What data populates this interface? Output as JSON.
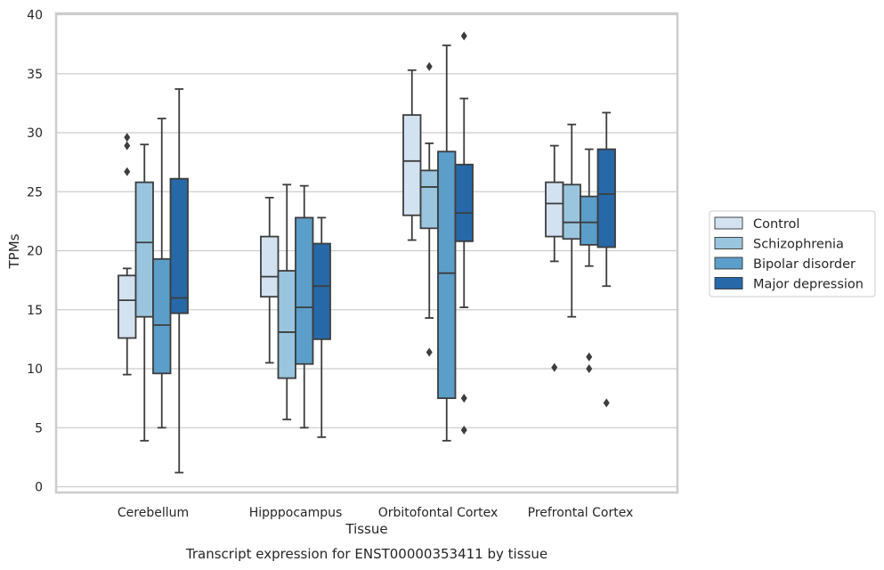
{
  "chart_data": {
    "type": "box",
    "title": "",
    "caption": "Transcript expression for ENST00000353411 by tissue",
    "xlabel": "Tissue",
    "ylabel": "TPMs",
    "ylim": [
      0,
      40
    ],
    "yticks": [
      0,
      5,
      10,
      15,
      20,
      25,
      30,
      35,
      40
    ],
    "grid": "horizontal",
    "legend_position": "right",
    "categories": [
      "Cerebellum",
      "Hipppocampus",
      "Orbitofontal Cortex",
      "Prefrontal Cortex"
    ],
    "series": [
      {
        "name": "Control",
        "color": "#d2e2f1",
        "boxes": [
          {
            "whislo": 9.5,
            "q1": 12.6,
            "med": 15.8,
            "q3": 17.9,
            "whishi": 18.5,
            "fliers": [
              26.7,
              28.9,
              29.6
            ]
          },
          {
            "whislo": 10.5,
            "q1": 16.1,
            "med": 17.8,
            "q3": 21.2,
            "whishi": 24.5,
            "fliers": []
          },
          {
            "whislo": 20.9,
            "q1": 23.0,
            "med": 27.6,
            "q3": 31.5,
            "whishi": 35.3,
            "fliers": []
          },
          {
            "whislo": 19.1,
            "q1": 21.2,
            "med": 24.0,
            "q3": 25.8,
            "whishi": 28.9,
            "fliers": [
              10.1
            ]
          }
        ]
      },
      {
        "name": "Schizophrenia",
        "color": "#9ac5de",
        "boxes": [
          {
            "whislo": 3.9,
            "q1": 14.4,
            "med": 20.7,
            "q3": 25.8,
            "whishi": 29.0,
            "fliers": []
          },
          {
            "whislo": 5.7,
            "q1": 9.2,
            "med": 13.1,
            "q3": 18.3,
            "whishi": 25.6,
            "fliers": []
          },
          {
            "whislo": 14.3,
            "q1": 21.9,
            "med": 25.4,
            "q3": 26.8,
            "whishi": 29.1,
            "fliers": [
              11.4,
              35.6
            ]
          },
          {
            "whislo": 14.4,
            "q1": 21.0,
            "med": 22.4,
            "q3": 25.6,
            "whishi": 30.7,
            "fliers": []
          }
        ]
      },
      {
        "name": "Bipolar disorder",
        "color": "#5b9ec9",
        "boxes": [
          {
            "whislo": 5.0,
            "q1": 9.6,
            "med": 13.7,
            "q3": 19.3,
            "whishi": 31.2,
            "fliers": []
          },
          {
            "whislo": 5.0,
            "q1": 10.4,
            "med": 15.2,
            "q3": 22.8,
            "whishi": 25.5,
            "fliers": []
          },
          {
            "whislo": 3.9,
            "q1": 7.5,
            "med": 18.1,
            "q3": 28.4,
            "whishi": 37.4,
            "fliers": []
          },
          {
            "whislo": 18.7,
            "q1": 20.5,
            "med": 22.4,
            "q3": 24.6,
            "whishi": 28.6,
            "fliers": [
              10.0,
              11.0
            ]
          }
        ]
      },
      {
        "name": "Major depression",
        "color": "#2668a8",
        "boxes": [
          {
            "whislo": 1.2,
            "q1": 14.7,
            "med": 16.0,
            "q3": 26.1,
            "whishi": 33.7,
            "fliers": []
          },
          {
            "whislo": 4.2,
            "q1": 12.5,
            "med": 17.0,
            "q3": 20.6,
            "whishi": 22.8,
            "fliers": []
          },
          {
            "whislo": 15.2,
            "q1": 20.8,
            "med": 23.2,
            "q3": 27.3,
            "whishi": 32.9,
            "fliers": [
              4.8,
              7.5,
              38.2
            ]
          },
          {
            "whislo": 17.0,
            "q1": 20.3,
            "med": 24.8,
            "q3": 28.6,
            "whishi": 31.7,
            "fliers": [
              7.1
            ]
          }
        ]
      }
    ]
  }
}
